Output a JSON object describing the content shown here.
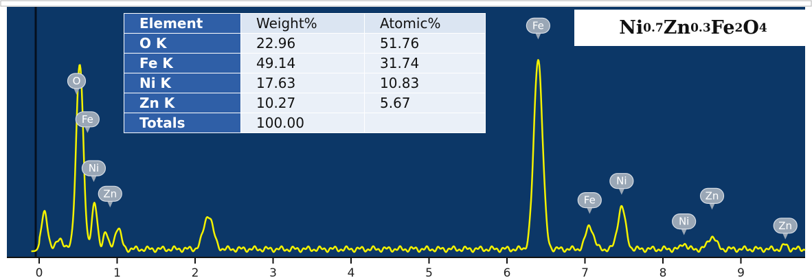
{
  "chart_data": {
    "type": "line",
    "xlim": [
      -0.1,
      9.8
    ],
    "x_ticks": [
      0,
      1,
      2,
      3,
      4,
      5,
      6,
      7,
      8,
      9
    ],
    "tick_labels": [
      "0",
      "1",
      "2",
      "3",
      "4",
      "5",
      "6",
      "7",
      "8",
      "9"
    ],
    "background_color": "#0c3767",
    "line_color": "#f4f200",
    "spectrum_peaks": [
      {
        "x": 0.07,
        "y": 0.17,
        "w": 0.04
      },
      {
        "x": 0.27,
        "y": 0.05,
        "w": 0.04
      },
      {
        "x": 0.52,
        "y": 0.87,
        "w": 0.045
      },
      {
        "x": 0.71,
        "y": 0.21,
        "w": 0.035
      },
      {
        "x": 0.85,
        "y": 0.08,
        "w": 0.03
      },
      {
        "x": 1.01,
        "y": 0.1,
        "w": 0.04
      },
      {
        "x": 2.17,
        "y": 0.16,
        "w": 0.06
      },
      {
        "x": 6.4,
        "y": 0.9,
        "w": 0.055
      },
      {
        "x": 7.06,
        "y": 0.11,
        "w": 0.05
      },
      {
        "x": 7.47,
        "y": 0.2,
        "w": 0.05
      },
      {
        "x": 8.27,
        "y": 0.03,
        "w": 0.03
      },
      {
        "x": 8.63,
        "y": 0.06,
        "w": 0.05
      },
      {
        "x": 9.57,
        "y": 0.02,
        "w": 0.03
      }
    ],
    "peak_labels": [
      {
        "text": "O",
        "x": 0.48,
        "y": 0.8
      },
      {
        "text": "Fe",
        "x": 0.62,
        "y": 0.62
      },
      {
        "text": "Ni",
        "x": 0.7,
        "y": 0.39
      },
      {
        "text": "Zn",
        "x": 0.91,
        "y": 0.27
      },
      {
        "text": "Fe",
        "x": 6.4,
        "y": 1.06
      },
      {
        "text": "Fe",
        "x": 7.06,
        "y": 0.24
      },
      {
        "text": "Ni",
        "x": 7.47,
        "y": 0.33
      },
      {
        "text": "Ni",
        "x": 8.27,
        "y": 0.14
      },
      {
        "text": "Zn",
        "x": 8.63,
        "y": 0.26
      },
      {
        "text": "Zn",
        "x": 9.57,
        "y": 0.12
      }
    ],
    "compound": {
      "base": [
        "Ni",
        "Zn",
        "Fe",
        "O"
      ],
      "subscripts": [
        "0.7",
        "0.3",
        "2",
        "4"
      ]
    },
    "table": {
      "headers": [
        "Element",
        "Weight%",
        "Atomic%"
      ],
      "rows": [
        [
          "O K",
          "22.96",
          "51.76"
        ],
        [
          "Fe K",
          "49.14",
          "31.74"
        ],
        [
          "Ni K",
          "17.63",
          "10.83"
        ],
        [
          "Zn K",
          "10.27",
          "5.67"
        ],
        [
          "Totals",
          "100.00",
          ""
        ]
      ]
    }
  }
}
